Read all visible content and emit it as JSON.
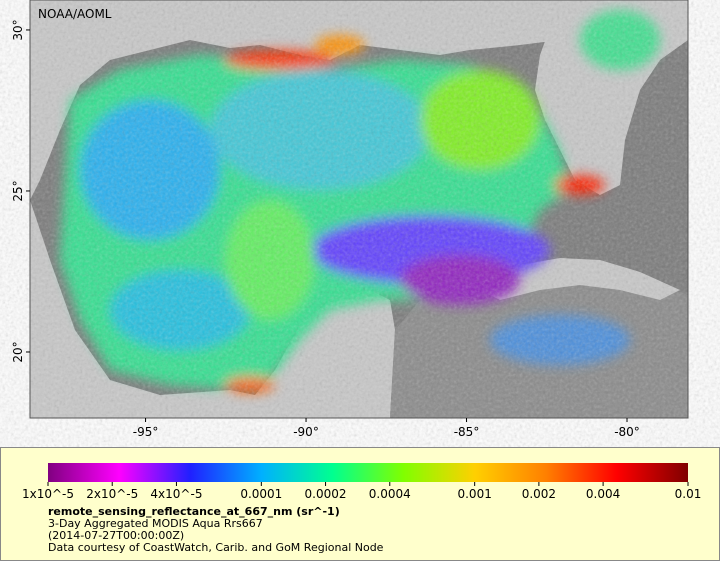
{
  "map": {
    "source": "NOAA/AOML",
    "lonlim": [
      -98.6,
      -78.1
    ],
    "latlim": [
      17.95,
      30.93
    ],
    "lonticks": [
      {
        "value": -95,
        "label": "-95°"
      },
      {
        "value": -90,
        "label": "-90°"
      },
      {
        "value": -85,
        "label": "-85°"
      },
      {
        "value": -80,
        "label": "-80°"
      }
    ],
    "latticks": [
      {
        "value": 30,
        "label": "30°"
      },
      {
        "value": 25,
        "label": "25°"
      },
      {
        "value": 20,
        "label": "20°"
      }
    ]
  },
  "colorbar": {
    "log_scale": true,
    "lim": [
      1e-05,
      0.01
    ],
    "colormap": [
      "#800080",
      "#ff00ff",
      "#2020ff",
      "#00b0ff",
      "#00ff90",
      "#80ff00",
      "#ffd000",
      "#ff8000",
      "#ff0000",
      "#800000"
    ],
    "ticks": [
      {
        "value": 1e-05,
        "label": "1x10^-5"
      },
      {
        "value": 2e-05,
        "label": "2x10^-5"
      },
      {
        "value": 4e-05,
        "label": "4x10^-5"
      },
      0.0001,
      0.0002,
      0.0004,
      0.001,
      0.002,
      0.004,
      0.01
    ],
    "variable": "remote_sensing_reflectance_at_667_nm (sr^-1)",
    "description": "3-Day Aggregated MODIS Aqua Rrs667",
    "time": "(2014-07-27T00:00:00Z)",
    "credit": "Data courtesy of CoastWatch, Carib. and GoM Regional Node"
  }
}
